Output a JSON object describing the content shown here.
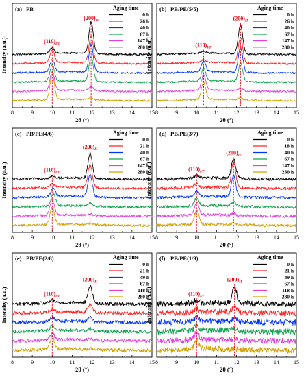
{
  "colors": [
    "#000000",
    "#ff2020",
    "#0033ff",
    "#12a352",
    "#e040e0",
    "#d4a000"
  ],
  "marker_color": "#e8000b",
  "chart_data": [
    {
      "type": "line",
      "letter": "(a)",
      "title": "PB",
      "xlabel": "2θ (°)",
      "ylabel": "Intensity (a.u.)",
      "xlim": [
        8,
        15
      ],
      "xticks": [
        "8",
        "9",
        "10",
        "11",
        "12",
        "13",
        "14",
        "15"
      ],
      "legend_title": "Aging time",
      "series": [
        {
          "name": "0 h",
          "offset": 5.0
        },
        {
          "name": "26 h",
          "offset": 4.0
        },
        {
          "name": "40 h",
          "offset": 3.0
        },
        {
          "name": "67 h",
          "offset": 2.0
        },
        {
          "name": "147 h",
          "offset": 1.0
        },
        {
          "name": "280 h",
          "offset": 0.0
        }
      ],
      "peaks": [
        {
          "label": "(110)",
          "label_sub": "I/I'",
          "series_pos": [
            10.0,
            10.0,
            10.0,
            10.0,
            10.0,
            10.0
          ],
          "series_height": [
            0.6,
            1.3,
            1.3,
            1.7,
            2.0,
            2.7
          ],
          "marker": 10.0
        },
        {
          "label": "(200)",
          "label_sub": "II",
          "series_pos": [
            11.95,
            11.95,
            11.95,
            11.95,
            11.95,
            11.95
          ],
          "series_height": [
            3.3,
            2.8,
            2.9,
            2.6,
            0.4,
            0.2
          ],
          "marker": 11.95
        }
      ],
      "noise": 0.03
    },
    {
      "type": "line",
      "letter": "(b)",
      "title": "PB/PE(5/5)",
      "xlabel": "2θ (°)",
      "ylabel": "Intensity (a.u.)",
      "xlim": [
        8,
        15
      ],
      "xticks": [
        "8",
        "9",
        "10",
        "11",
        "12",
        "13",
        "14",
        "15"
      ],
      "legend_title": "Aging time",
      "series": [
        {
          "name": "0 h",
          "offset": 5.0
        },
        {
          "name": "26 h",
          "offset": 4.0
        },
        {
          "name": "40 h",
          "offset": 3.0
        },
        {
          "name": "67 h",
          "offset": 2.0
        },
        {
          "name": "147 h",
          "offset": 1.0
        },
        {
          "name": "280 h",
          "offset": 0.0
        }
      ],
      "peaks": [
        {
          "label": "(110)",
          "label_sub": "I/I'",
          "series_pos": [
            10.35,
            10.35,
            10.35,
            10.35,
            10.35,
            10.35
          ],
          "series_height": [
            0.2,
            0.3,
            1.1,
            1.3,
            1.6,
            1.8
          ],
          "marker": 10.35
        },
        {
          "label": "(200)",
          "label_sub": "II",
          "series_pos": [
            12.2,
            12.2,
            12.2,
            12.2,
            12.2,
            12.2
          ],
          "series_height": [
            3.0,
            2.7,
            2.6,
            1.9,
            0.3,
            0.2
          ],
          "marker": 12.2
        }
      ],
      "noise": 0.03
    },
    {
      "type": "line",
      "letter": "(c)",
      "title": "PB/PE(4/6)",
      "xlabel": "2θ (°)",
      "ylabel": "Intensity (a.u.)",
      "xlim": [
        8,
        15
      ],
      "xticks": [
        "8",
        "9",
        "10",
        "11",
        "12",
        "13",
        "14",
        "15"
      ],
      "legend_title": "Aging time",
      "series": [
        {
          "name": "0 h",
          "offset": 5.0
        },
        {
          "name": "21 h",
          "offset": 4.0
        },
        {
          "name": "40 h",
          "offset": 3.0
        },
        {
          "name": "67 h",
          "offset": 2.0
        },
        {
          "name": "147 h",
          "offset": 1.0
        },
        {
          "name": "280 h",
          "offset": 0.0
        }
      ],
      "peaks": [
        {
          "label": "(110)",
          "label_sub": "I/I'",
          "series_pos": [
            10.0,
            10.0,
            10.05,
            10.05,
            10.0,
            10.0
          ],
          "series_height": [
            0.2,
            0.4,
            0.9,
            1.3,
            1.6,
            1.8
          ],
          "marker": 10.0
        },
        {
          "label": "(200)",
          "label_sub": "II",
          "series_pos": [
            11.9,
            11.9,
            11.9,
            11.9,
            11.9,
            11.9
          ],
          "series_height": [
            2.6,
            2.4,
            2.3,
            0.3,
            0.15,
            0.1
          ],
          "marker": 11.9
        }
      ],
      "noise": 0.04
    },
    {
      "type": "line",
      "letter": "(d)",
      "title": "PB/PE(3/7)",
      "xlabel": "2θ (°)",
      "ylabel": "Intensity (a.u.)",
      "xlim": [
        8,
        15
      ],
      "xticks": [
        "8",
        "9",
        "10",
        "11",
        "12",
        "13",
        "14",
        "15"
      ],
      "legend_title": "Aging time",
      "series": [
        {
          "name": "0 h",
          "offset": 5.0
        },
        {
          "name": "18 h",
          "offset": 4.0
        },
        {
          "name": "40 h",
          "offset": 3.0
        },
        {
          "name": "67 h",
          "offset": 2.0
        },
        {
          "name": "147 h",
          "offset": 1.0
        },
        {
          "name": "280 h",
          "offset": 0.0
        }
      ],
      "peaks": [
        {
          "label": "(110)",
          "label_sub": "I/I'",
          "series_pos": [
            10.0,
            10.0,
            10.0,
            10.0,
            10.0,
            10.0
          ],
          "series_height": [
            0.3,
            0.4,
            0.6,
            0.8,
            1.4,
            1.5
          ],
          "marker": 10.0
        },
        {
          "label": "(200)",
          "label_sub": "II",
          "series_pos": [
            11.85,
            11.85,
            11.85,
            11.85,
            11.85,
            11.85
          ],
          "series_height": [
            2.0,
            2.6,
            2.2,
            0.4,
            0.2,
            0.15
          ],
          "marker": 11.85
        }
      ],
      "noise": 0.05
    },
    {
      "type": "line",
      "letter": "(e)",
      "title": "PB/PE(2/8)",
      "xlabel": "2θ (°)",
      "ylabel": "Intensity (a.u.)",
      "xlim": [
        8,
        15
      ],
      "xticks": [
        "8",
        "9",
        "10",
        "11",
        "12",
        "13",
        "14",
        "15"
      ],
      "legend_title": "Aging time",
      "series": [
        {
          "name": "0 h",
          "offset": 5.0
        },
        {
          "name": "21 h",
          "offset": 4.0
        },
        {
          "name": "49 h",
          "offset": 3.0
        },
        {
          "name": "67 h",
          "offset": 2.0
        },
        {
          "name": "118 h",
          "offset": 1.0
        },
        {
          "name": "280 h",
          "offset": 0.0
        }
      ],
      "peaks": [
        {
          "label": "(110)",
          "label_sub": "I/I'",
          "series_pos": [
            10.0,
            10.0,
            10.0,
            10.0,
            10.0,
            10.0
          ],
          "series_height": [
            0.3,
            0.35,
            0.4,
            0.5,
            0.7,
            1.3
          ],
          "marker": 10.0
        },
        {
          "label": "(200)",
          "label_sub": "II",
          "series_pos": [
            11.9,
            11.9,
            11.9,
            11.9,
            11.9,
            11.9
          ],
          "series_height": [
            1.8,
            0.9,
            0.4,
            0.2,
            0.1,
            0.1
          ],
          "marker": 11.9
        }
      ],
      "noise": 0.06
    },
    {
      "type": "line",
      "letter": "(f)",
      "title": "PB/PE(1/9)",
      "xlabel": "2θ (°)",
      "ylabel": "Intensity (a.u.)",
      "xlim": [
        8,
        15
      ],
      "xticks": [
        "8",
        "9",
        "10",
        "11",
        "12",
        "13",
        "14",
        "15"
      ],
      "legend_title": "Aging time",
      "series": [
        {
          "name": "0 h",
          "offset": 5.0
        },
        {
          "name": "21 h",
          "offset": 4.0
        },
        {
          "name": "49 h",
          "offset": 3.0
        },
        {
          "name": "67 h",
          "offset": 2.0
        },
        {
          "name": "118 h",
          "offset": 1.0
        },
        {
          "name": "280 h",
          "offset": 0.0
        }
      ],
      "peaks": [
        {
          "label": "(110)",
          "label_sub": "I/I'",
          "series_pos": [
            10.0,
            10.0,
            10.0,
            10.0,
            10.0,
            10.0
          ],
          "series_height": [
            0.3,
            0.4,
            0.5,
            0.6,
            0.8,
            0.9
          ],
          "marker": 10.0
        },
        {
          "label": "(200)",
          "label_sub": "II",
          "series_pos": [
            11.9,
            11.9,
            11.9,
            11.9,
            11.9,
            11.9
          ],
          "series_height": [
            1.8,
            0.6,
            0.3,
            0.2,
            0.15,
            0.1
          ],
          "marker": 11.9
        }
      ],
      "noise": 0.1
    }
  ]
}
